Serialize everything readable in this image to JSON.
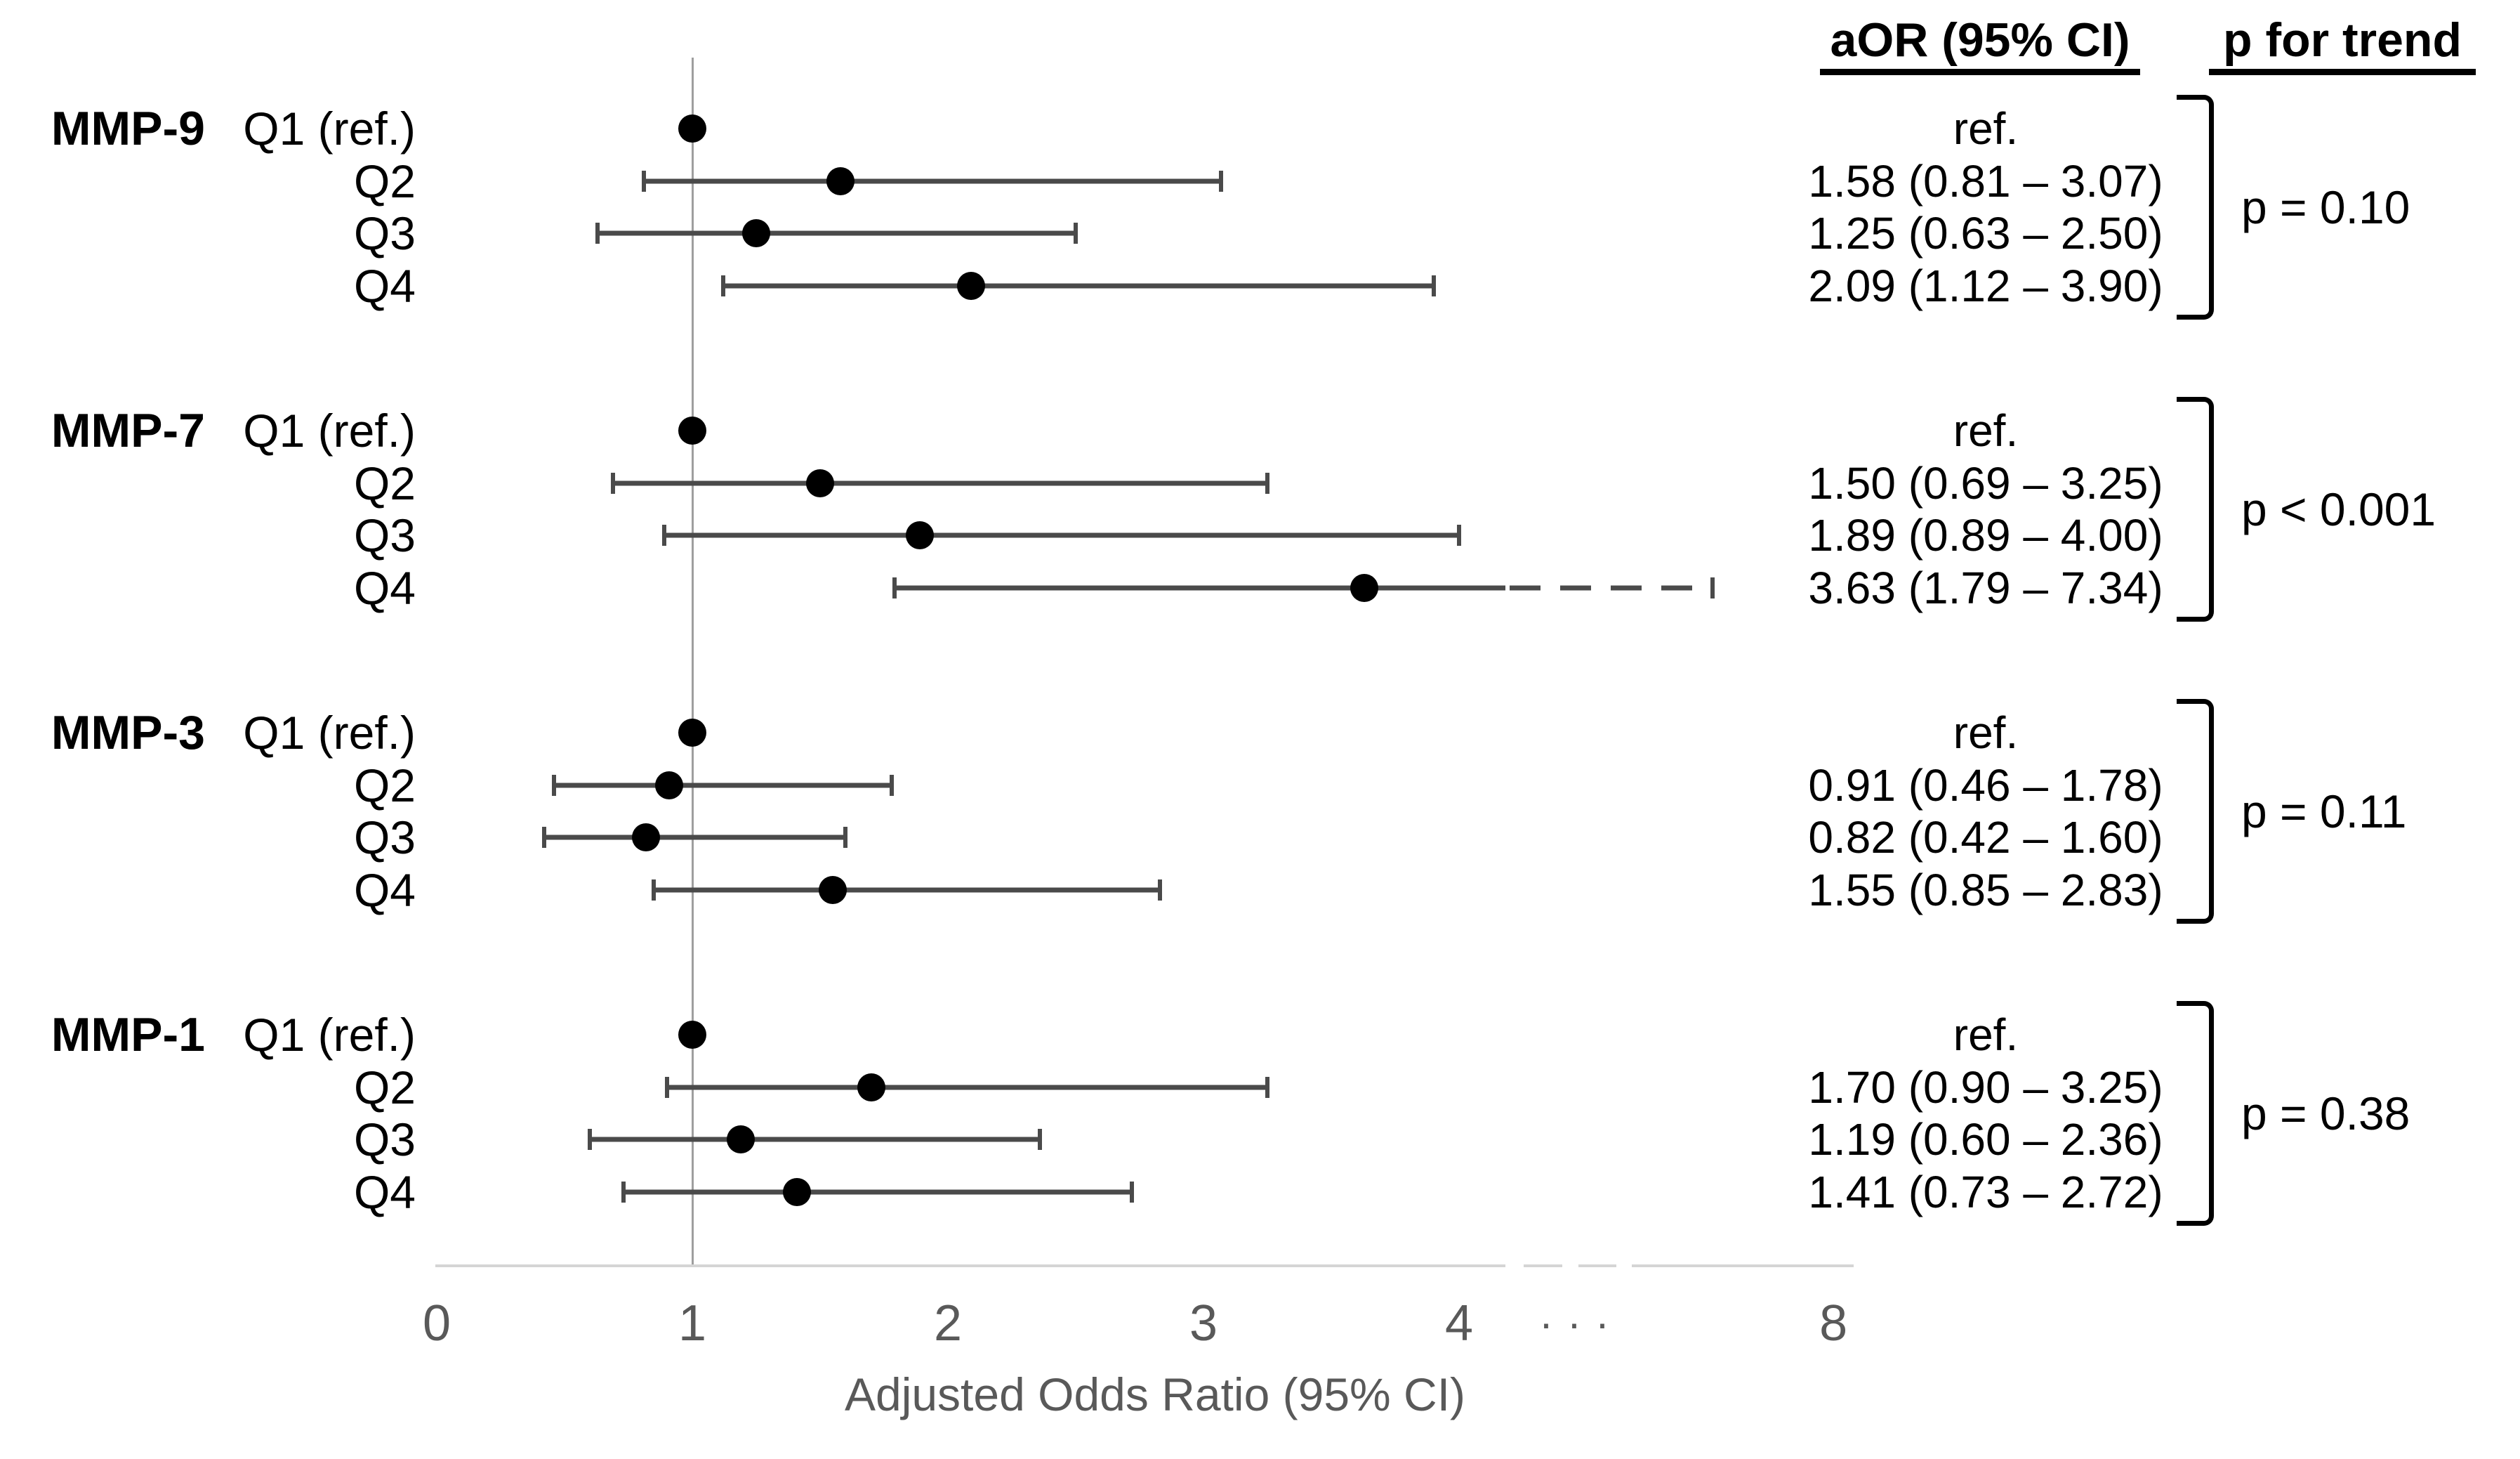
{
  "headers": {
    "aor": "aOR (95% CI)",
    "p": "p for trend"
  },
  "chart_data": {
    "type": "forest",
    "title": "",
    "xlabel": "Adjusted Odds Ratio (95% CI)",
    "x_ticks": [
      0,
      1,
      2,
      3,
      4,
      8
    ],
    "axis_break": {
      "between": [
        4,
        8
      ],
      "label": "···"
    },
    "ref_line": 1.0,
    "colors": {
      "dot": "#000000",
      "ci": "#4a4a4a",
      "axis": "#d5d5d5",
      "ref": "#9e9e9e",
      "tick_text": "#595959"
    },
    "groups": [
      {
        "name": "MMP-9",
        "p_for_trend": "p = 0.10",
        "rows": [
          {
            "label": "Q1 (ref.)",
            "aor": 1.0,
            "ref": true,
            "text": "ref."
          },
          {
            "label": "Q2",
            "aor": 1.58,
            "lo": 0.81,
            "hi": 3.07,
            "text": "1.58 (0.81 – 3.07)"
          },
          {
            "label": "Q3",
            "aor": 1.25,
            "lo": 0.63,
            "hi": 2.5,
            "text": "1.25 (0.63 – 2.50)"
          },
          {
            "label": "Q4",
            "aor": 2.09,
            "lo": 1.12,
            "hi": 3.9,
            "text": "2.09 (1.12 – 3.90)"
          }
        ]
      },
      {
        "name": "MMP-7",
        "p_for_trend": "p < 0.001",
        "rows": [
          {
            "label": "Q1 (ref.)",
            "aor": 1.0,
            "ref": true,
            "text": "ref."
          },
          {
            "label": "Q2",
            "aor": 1.5,
            "lo": 0.69,
            "hi": 3.25,
            "text": "1.50 (0.69 – 3.25)"
          },
          {
            "label": "Q3",
            "aor": 1.89,
            "lo": 0.89,
            "hi": 4.0,
            "text": "1.89 (0.89 – 4.00)"
          },
          {
            "label": "Q4",
            "aor": 3.63,
            "lo": 1.79,
            "hi": 7.34,
            "text": "3.63 (1.79 – 7.34)",
            "crosses_break": true
          }
        ]
      },
      {
        "name": "MMP-3",
        "p_for_trend": "p = 0.11",
        "rows": [
          {
            "label": "Q1 (ref.)",
            "aor": 1.0,
            "ref": true,
            "text": "ref."
          },
          {
            "label": "Q2",
            "aor": 0.91,
            "lo": 0.46,
            "hi": 1.78,
            "text": "0.91 (0.46 – 1.78)"
          },
          {
            "label": "Q3",
            "aor": 0.82,
            "lo": 0.42,
            "hi": 1.6,
            "text": "0.82 (0.42 – 1.60)"
          },
          {
            "label": "Q4",
            "aor": 1.55,
            "lo": 0.85,
            "hi": 2.83,
            "text": "1.55 (0.85 – 2.83)"
          }
        ]
      },
      {
        "name": "MMP-1",
        "p_for_trend": "p = 0.38",
        "rows": [
          {
            "label": "Q1 (ref.)",
            "aor": 1.0,
            "ref": true,
            "text": "ref."
          },
          {
            "label": "Q2",
            "aor": 1.7,
            "lo": 0.9,
            "hi": 3.25,
            "text": "1.70 (0.90 – 3.25)"
          },
          {
            "label": "Q3",
            "aor": 1.19,
            "lo": 0.6,
            "hi": 2.36,
            "text": "1.19 (0.60 – 2.36)"
          },
          {
            "label": "Q4",
            "aor": 1.41,
            "lo": 0.73,
            "hi": 2.72,
            "text": "1.41 (0.73 – 2.72)"
          }
        ]
      }
    ]
  }
}
